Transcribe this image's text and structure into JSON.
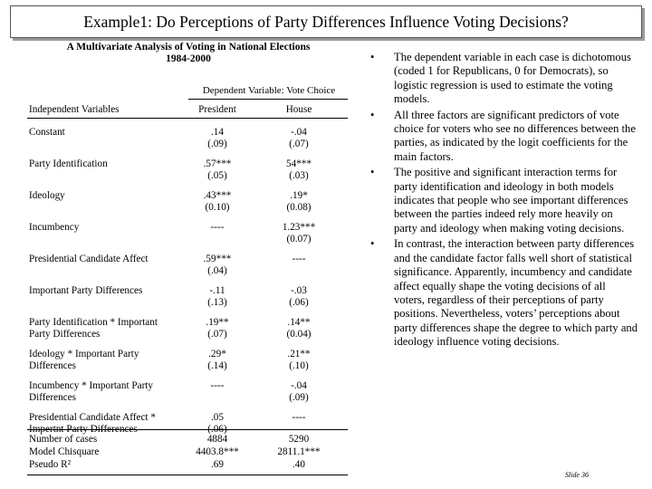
{
  "slide": {
    "title": "Example1: Do Perceptions of Party Differences Influence Voting Decisions?",
    "slide_number": "Slide 36"
  },
  "table": {
    "title_line1": "A Multivariate Analysis of Voting in National Elections",
    "title_line2": "1984-2000",
    "dependent_variable": "Dependent Variable: Vote Choice",
    "headers": [
      "Independent Variables",
      "President",
      "House"
    ],
    "rows": [
      {
        "label": [
          "Constant"
        ],
        "president": [
          ".14",
          "(.09)"
        ],
        "house": [
          "-.04",
          "(.07)"
        ]
      },
      {
        "label": [
          "Party Identification"
        ],
        "president": [
          ".57***",
          "(.05)"
        ],
        "house": [
          "54***",
          "(.03)"
        ]
      },
      {
        "label": [
          "Ideology"
        ],
        "president": [
          ".43***",
          "(0.10)"
        ],
        "house": [
          ".19*",
          "(0.08)"
        ]
      },
      {
        "label": [
          "Incumbency"
        ],
        "president": [
          "----"
        ],
        "house": [
          "1.23***",
          "(0.07)"
        ]
      },
      {
        "label": [
          "Presidential Candidate Affect"
        ],
        "president": [
          ".59***",
          "(.04)"
        ],
        "house": [
          "----"
        ]
      },
      {
        "label": [
          "Important Party Differences"
        ],
        "president": [
          "-.11",
          "(.13)"
        ],
        "house": [
          "-.03",
          "(.06)"
        ]
      },
      {
        "label": [
          "Party Identification * Important",
          "Party Differences"
        ],
        "president": [
          ".19**",
          "(.07)"
        ],
        "house": [
          ".14**",
          "(0.04)"
        ]
      },
      {
        "label": [
          "Ideology * Important Party",
          "Differences"
        ],
        "president": [
          ".29*",
          "(.14)"
        ],
        "house": [
          ".21**",
          "(.10)"
        ]
      },
      {
        "label": [
          "Incumbency * Important Party",
          "Differences"
        ],
        "president": [
          "----"
        ],
        "house": [
          "-.04",
          "(.09)"
        ]
      },
      {
        "label": [
          "Presidential Candidate Affect *",
          "Impertnt Party Differences"
        ],
        "president": [
          ".05",
          "(.06)"
        ],
        "house": [
          "----"
        ]
      }
    ],
    "footer": [
      {
        "label": "Number of cases",
        "president": "4884",
        "house": "5290"
      },
      {
        "label": "Model Chisquare",
        "president": "4403.8***",
        "house": "2811.1***"
      },
      {
        "label": "Pseudo R²",
        "president": ".69",
        "house": ".40"
      }
    ]
  },
  "bullets": [
    "The dependent variable in each case is dichotomous (coded 1 for Republicans, 0 for Democrats), so logistic regression is used to estimate the voting models.",
    "All three factors are significant predictors of vote choice for voters who see no differences between the parties, as indicated by the logit coefficients for the main factors.",
    "The positive and significant interaction terms for party identification and ideology in both models indicates that people who see important differences between the parties indeed rely more heavily on party and ideology when making voting decisions.",
    "In contrast, the interaction between party differences and the candidate factor falls well short of statistical significance. Apparently, incumbency and candidate affect equally shape the voting decisions of all voters, regardless of their perceptions of party positions. Nevertheless, voters’ perceptions about party differences shape the degree to which party and ideology influence voting decisions."
  ],
  "bullet_symbol": "•"
}
